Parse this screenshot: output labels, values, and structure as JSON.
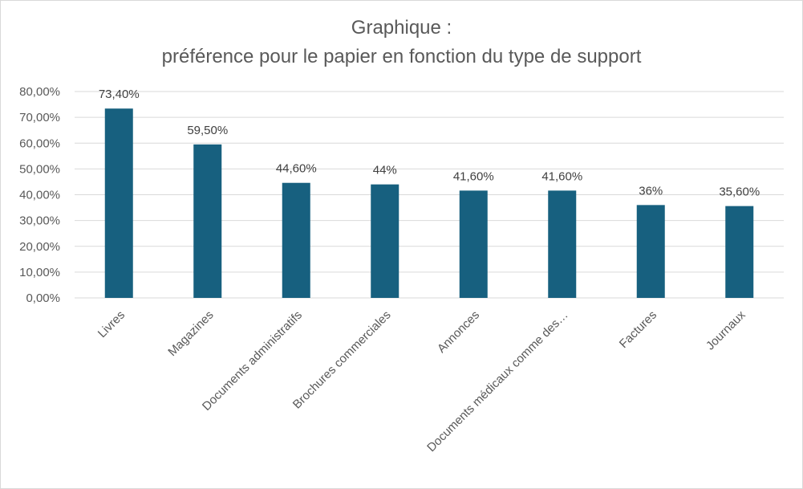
{
  "chart_data": {
    "type": "bar",
    "title": "Graphique :",
    "subtitle": "préférence pour le papier en fonction du type de support",
    "categories": [
      "Livres",
      "Magazines",
      "Documents administratifs",
      "Brochures commerciales",
      "Annonces",
      "Documents médicaux comme des…",
      "Factures",
      "Journaux"
    ],
    "values": [
      73.4,
      59.5,
      44.6,
      44,
      41.6,
      41.6,
      36,
      35.6
    ],
    "data_labels": [
      "73,40%",
      "59,50%",
      "44,60%",
      "44%",
      "41,60%",
      "41,60%",
      "36%",
      "35,60%"
    ],
    "yticks": [
      0,
      10,
      20,
      30,
      40,
      50,
      60,
      70,
      80
    ],
    "ytick_labels": [
      "0,00%",
      "10,00%",
      "20,00%",
      "30,00%",
      "40,00%",
      "50,00%",
      "60,00%",
      "70,00%",
      "80,00%"
    ],
    "ylim": [
      0,
      80
    ],
    "grid": true,
    "legend": "none",
    "colors": {
      "bar": "#17607f",
      "grid": "#d9d9d9",
      "text": "#595959"
    }
  }
}
